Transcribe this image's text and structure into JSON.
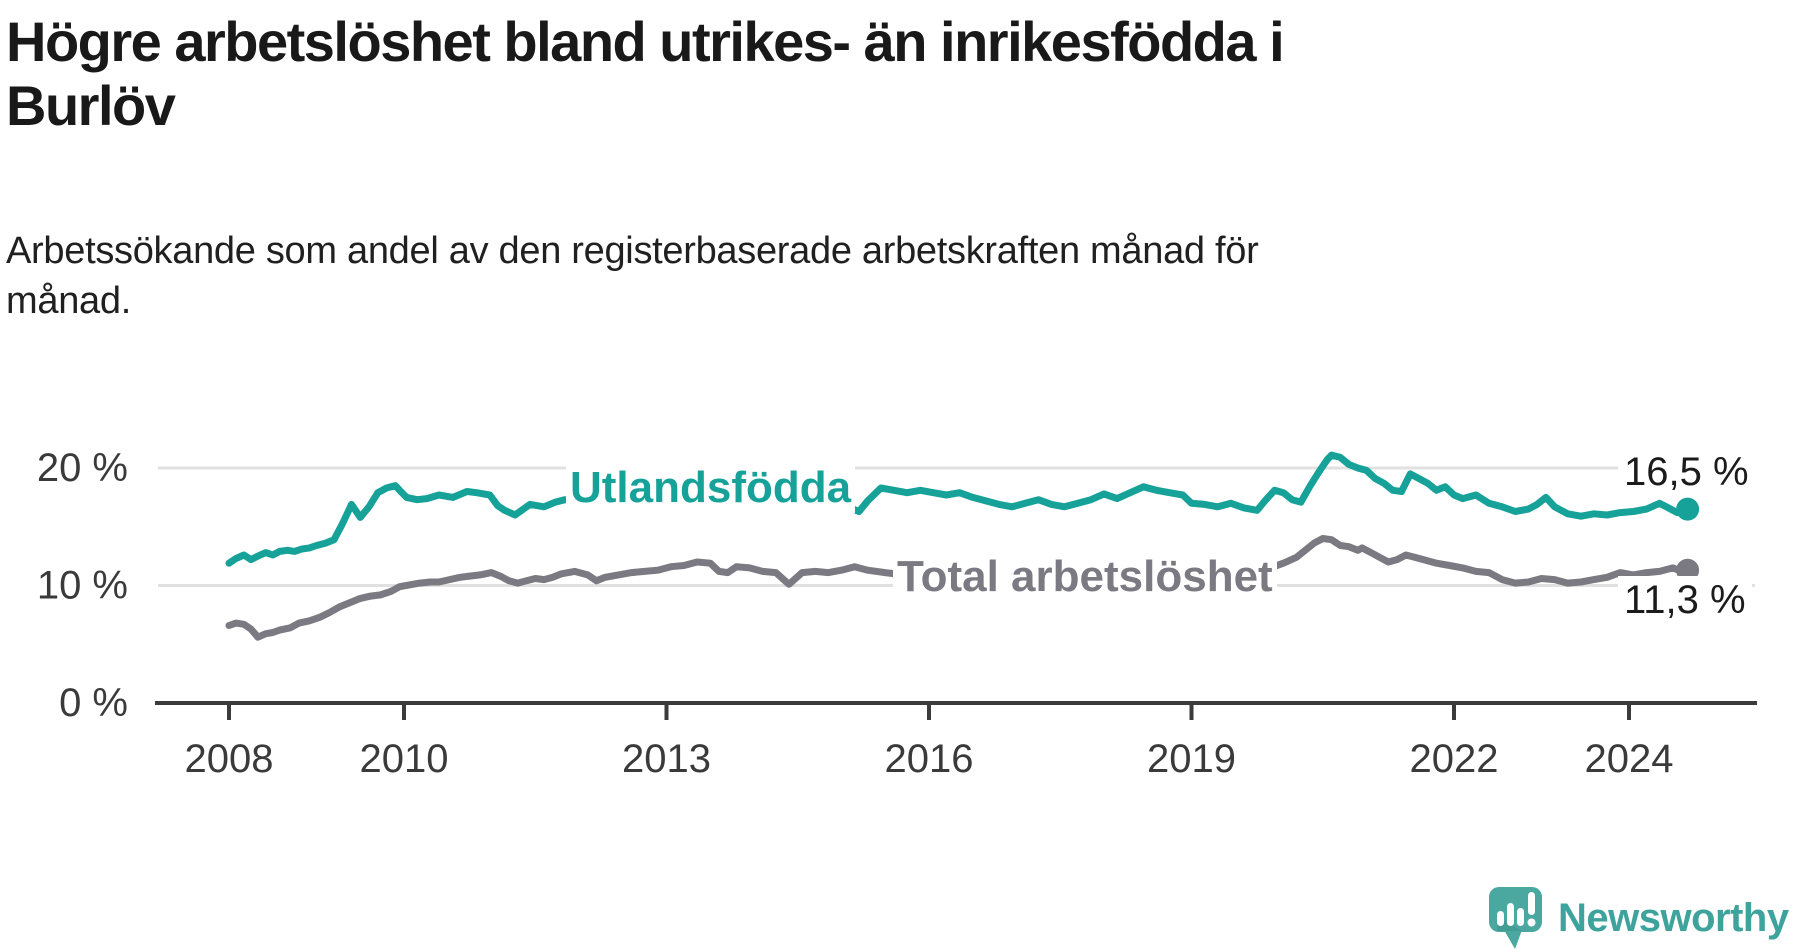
{
  "header": {
    "title_line1": "Högre arbetslöshet bland utrikes- än inrikesfödda i",
    "title_line2": "Burlöv",
    "subtitle_line1": "Arbetssökande som andel av den registerbaserade arbetskraften månad för",
    "subtitle_line2": "månad."
  },
  "branding": {
    "logo_text": "Newsworthy",
    "logo_text_color": "#3ea39c",
    "logo_icon_color": "#4ba8a1",
    "logo_icon_shadow_color": "#3c948d"
  },
  "colors": {
    "background": "#ffffff",
    "text": "#191919",
    "axis": "#3b3b3b",
    "tick_label": "#3a3a3a",
    "gridline": "#e1e1e1",
    "series_foreign_born": "#16a299",
    "series_total": "#7b7981"
  },
  "chart_data": {
    "type": "line",
    "title": "Högre arbetslöshet bland utrikes- än inrikesfödda i Burlöv",
    "subtitle": "Arbetssökande som andel av den registerbaserade arbetskraften månad för månad.",
    "grid": "horizontal",
    "legend_position": "inline-labels",
    "xlim": [
      2007.2,
      2025.4
    ],
    "ylim": [
      0,
      22.5
    ],
    "x_ticks": [
      {
        "year": 2008,
        "label": "2008"
      },
      {
        "year": 2010,
        "label": "2010"
      },
      {
        "year": 2013,
        "label": "2013"
      },
      {
        "year": 2016,
        "label": "2016"
      },
      {
        "year": 2019,
        "label": "2019"
      },
      {
        "year": 2022,
        "label": "2022"
      },
      {
        "year": 2024,
        "label": "2024"
      }
    ],
    "y_ticks": [
      {
        "value": 0,
        "label": "0 %"
      },
      {
        "value": 10,
        "label": "10 %"
      },
      {
        "value": 20,
        "label": "20 %"
      }
    ],
    "series": [
      {
        "name": "Utlandsfödda",
        "color": "#16a299",
        "end_label": "16,5 %",
        "end_value": 16.5,
        "points": [
          [
            2008.0,
            11.9
          ],
          [
            2008.08,
            12.3
          ],
          [
            2008.17,
            12.6
          ],
          [
            2008.25,
            12.2
          ],
          [
            2008.33,
            12.5
          ],
          [
            2008.42,
            12.8
          ],
          [
            2008.5,
            12.6
          ],
          [
            2008.58,
            12.9
          ],
          [
            2008.67,
            13.0
          ],
          [
            2008.75,
            12.9
          ],
          [
            2008.83,
            13.1
          ],
          [
            2008.92,
            13.2
          ],
          [
            2009.0,
            13.4
          ],
          [
            2009.1,
            13.6
          ],
          [
            2009.2,
            13.9
          ],
          [
            2009.3,
            15.3
          ],
          [
            2009.4,
            16.9
          ],
          [
            2009.5,
            15.8
          ],
          [
            2009.6,
            16.7
          ],
          [
            2009.7,
            17.9
          ],
          [
            2009.8,
            18.3
          ],
          [
            2009.9,
            18.5
          ],
          [
            2009.95,
            18.1
          ],
          [
            2010.03,
            17.5
          ],
          [
            2010.15,
            17.3
          ],
          [
            2010.26,
            17.4
          ],
          [
            2010.4,
            17.7
          ],
          [
            2010.56,
            17.5
          ],
          [
            2010.72,
            18.0
          ],
          [
            2010.83,
            17.9
          ],
          [
            2010.98,
            17.7
          ],
          [
            2011.07,
            16.8
          ],
          [
            2011.15,
            16.4
          ],
          [
            2011.27,
            16.0
          ],
          [
            2011.44,
            16.9
          ],
          [
            2011.6,
            16.7
          ],
          [
            2011.73,
            17.1
          ],
          [
            2011.84,
            17.3
          ],
          [
            2011.95,
            17.2
          ],
          [
            2012.1,
            17.4
          ],
          [
            2012.25,
            17.3
          ],
          [
            2012.4,
            17.5
          ],
          [
            2012.55,
            17.7
          ],
          [
            2012.7,
            17.4
          ],
          [
            2012.85,
            17.7
          ],
          [
            2013.0,
            18.0
          ],
          [
            2013.15,
            18.3
          ],
          [
            2013.3,
            18.5
          ],
          [
            2013.45,
            18.2
          ],
          [
            2013.6,
            17.9
          ],
          [
            2013.75,
            18.0
          ],
          [
            2013.9,
            17.9
          ],
          [
            2014.05,
            17.7
          ],
          [
            2014.2,
            17.5
          ],
          [
            2014.35,
            17.4
          ],
          [
            2014.5,
            17.7
          ],
          [
            2014.65,
            17.4
          ],
          [
            2014.8,
            17.1
          ],
          [
            2014.95,
            16.8
          ],
          [
            2015.1,
            16.6
          ],
          [
            2015.2,
            16.3
          ],
          [
            2015.3,
            17.2
          ],
          [
            2015.45,
            18.3
          ],
          [
            2015.6,
            18.1
          ],
          [
            2015.75,
            17.9
          ],
          [
            2015.9,
            18.1
          ],
          [
            2016.05,
            17.9
          ],
          [
            2016.2,
            17.7
          ],
          [
            2016.35,
            17.9
          ],
          [
            2016.5,
            17.5
          ],
          [
            2016.65,
            17.2
          ],
          [
            2016.8,
            16.9
          ],
          [
            2016.95,
            16.7
          ],
          [
            2017.1,
            17.0
          ],
          [
            2017.25,
            17.3
          ],
          [
            2017.4,
            16.9
          ],
          [
            2017.55,
            16.7
          ],
          [
            2017.7,
            17.0
          ],
          [
            2017.85,
            17.3
          ],
          [
            2018.0,
            17.8
          ],
          [
            2018.15,
            17.4
          ],
          [
            2018.3,
            17.9
          ],
          [
            2018.45,
            18.4
          ],
          [
            2018.6,
            18.1
          ],
          [
            2018.75,
            17.9
          ],
          [
            2018.9,
            17.7
          ],
          [
            2019.0,
            17.0
          ],
          [
            2019.15,
            16.9
          ],
          [
            2019.3,
            16.7
          ],
          [
            2019.45,
            17.0
          ],
          [
            2019.6,
            16.6
          ],
          [
            2019.75,
            16.4
          ],
          [
            2019.85,
            17.3
          ],
          [
            2019.95,
            18.1
          ],
          [
            2020.05,
            17.9
          ],
          [
            2020.15,
            17.3
          ],
          [
            2020.25,
            17.1
          ],
          [
            2020.35,
            18.4
          ],
          [
            2020.45,
            19.6
          ],
          [
            2020.55,
            20.7
          ],
          [
            2020.6,
            21.1
          ],
          [
            2020.7,
            20.9
          ],
          [
            2020.8,
            20.3
          ],
          [
            2020.9,
            20.0
          ],
          [
            2021.0,
            19.8
          ],
          [
            2021.1,
            19.1
          ],
          [
            2021.2,
            18.7
          ],
          [
            2021.3,
            18.1
          ],
          [
            2021.4,
            18.0
          ],
          [
            2021.5,
            19.5
          ],
          [
            2021.6,
            19.1
          ],
          [
            2021.7,
            18.7
          ],
          [
            2021.8,
            18.1
          ],
          [
            2021.9,
            18.4
          ],
          [
            2022.0,
            17.7
          ],
          [
            2022.1,
            17.4
          ],
          [
            2022.25,
            17.7
          ],
          [
            2022.4,
            17.0
          ],
          [
            2022.55,
            16.7
          ],
          [
            2022.7,
            16.3
          ],
          [
            2022.85,
            16.5
          ],
          [
            2022.95,
            16.9
          ],
          [
            2023.05,
            17.5
          ],
          [
            2023.15,
            16.7
          ],
          [
            2023.3,
            16.1
          ],
          [
            2023.45,
            15.9
          ],
          [
            2023.6,
            16.1
          ],
          [
            2023.75,
            16.0
          ],
          [
            2023.9,
            16.2
          ],
          [
            2024.05,
            16.3
          ],
          [
            2024.2,
            16.5
          ],
          [
            2024.35,
            17.0
          ],
          [
            2024.45,
            16.6
          ],
          [
            2024.55,
            16.2
          ],
          [
            2024.67,
            16.5
          ]
        ]
      },
      {
        "name": "Total arbetslöshet",
        "color": "#7b7981",
        "end_label": "11,3 %",
        "end_value": 11.3,
        "points": [
          [
            2008.0,
            6.6
          ],
          [
            2008.08,
            6.8
          ],
          [
            2008.17,
            6.7
          ],
          [
            2008.25,
            6.3
          ],
          [
            2008.33,
            5.6
          ],
          [
            2008.42,
            5.9
          ],
          [
            2008.5,
            6.0
          ],
          [
            2008.58,
            6.2
          ],
          [
            2008.7,
            6.4
          ],
          [
            2008.8,
            6.8
          ],
          [
            2008.92,
            7.0
          ],
          [
            2009.04,
            7.3
          ],
          [
            2009.15,
            7.7
          ],
          [
            2009.27,
            8.2
          ],
          [
            2009.4,
            8.6
          ],
          [
            2009.5,
            8.9
          ],
          [
            2009.62,
            9.1
          ],
          [
            2009.73,
            9.2
          ],
          [
            2009.85,
            9.5
          ],
          [
            2009.95,
            9.9
          ],
          [
            2010.1,
            10.1
          ],
          [
            2010.18,
            10.2
          ],
          [
            2010.3,
            10.3
          ],
          [
            2010.4,
            10.3
          ],
          [
            2010.52,
            10.5
          ],
          [
            2010.64,
            10.7
          ],
          [
            2010.75,
            10.8
          ],
          [
            2010.87,
            10.9
          ],
          [
            2011.0,
            11.1
          ],
          [
            2011.1,
            10.8
          ],
          [
            2011.2,
            10.4
          ],
          [
            2011.3,
            10.2
          ],
          [
            2011.4,
            10.4
          ],
          [
            2011.5,
            10.6
          ],
          [
            2011.6,
            10.5
          ],
          [
            2011.7,
            10.7
          ],
          [
            2011.8,
            11.0
          ],
          [
            2011.95,
            11.2
          ],
          [
            2012.1,
            10.9
          ],
          [
            2012.2,
            10.4
          ],
          [
            2012.3,
            10.7
          ],
          [
            2012.45,
            10.9
          ],
          [
            2012.6,
            11.1
          ],
          [
            2012.75,
            11.2
          ],
          [
            2012.9,
            11.3
          ],
          [
            2013.05,
            11.6
          ],
          [
            2013.2,
            11.7
          ],
          [
            2013.35,
            12.0
          ],
          [
            2013.5,
            11.9
          ],
          [
            2013.6,
            11.2
          ],
          [
            2013.7,
            11.1
          ],
          [
            2013.8,
            11.6
          ],
          [
            2013.95,
            11.5
          ],
          [
            2014.1,
            11.2
          ],
          [
            2014.25,
            11.1
          ],
          [
            2014.4,
            10.1
          ],
          [
            2014.55,
            11.1
          ],
          [
            2014.7,
            11.2
          ],
          [
            2014.85,
            11.1
          ],
          [
            2015.0,
            11.3
          ],
          [
            2015.15,
            11.6
          ],
          [
            2015.3,
            11.3
          ],
          [
            2015.5,
            11.1
          ],
          [
            2015.7,
            10.9
          ],
          [
            2015.9,
            11.0
          ],
          [
            2016.1,
            10.8
          ],
          [
            2016.3,
            10.6
          ],
          [
            2016.5,
            10.5
          ],
          [
            2016.7,
            10.3
          ],
          [
            2016.9,
            10.4
          ],
          [
            2017.1,
            10.2
          ],
          [
            2017.3,
            10.4
          ],
          [
            2017.5,
            10.3
          ],
          [
            2017.7,
            10.5
          ],
          [
            2017.9,
            10.4
          ],
          [
            2018.1,
            10.6
          ],
          [
            2018.3,
            10.5
          ],
          [
            2018.5,
            10.7
          ],
          [
            2018.7,
            10.6
          ],
          [
            2018.9,
            10.8
          ],
          [
            2019.1,
            10.9
          ],
          [
            2019.3,
            11.1
          ],
          [
            2019.5,
            11.0
          ],
          [
            2019.7,
            11.2
          ],
          [
            2019.9,
            11.5
          ],
          [
            2020.05,
            11.9
          ],
          [
            2020.2,
            12.4
          ],
          [
            2020.3,
            13.0
          ],
          [
            2020.4,
            13.6
          ],
          [
            2020.5,
            14.0
          ],
          [
            2020.6,
            13.9
          ],
          [
            2020.7,
            13.4
          ],
          [
            2020.8,
            13.3
          ],
          [
            2020.9,
            13.0
          ],
          [
            2020.95,
            13.2
          ],
          [
            2021.05,
            12.8
          ],
          [
            2021.15,
            12.4
          ],
          [
            2021.25,
            12.0
          ],
          [
            2021.35,
            12.2
          ],
          [
            2021.45,
            12.6
          ],
          [
            2021.55,
            12.4
          ],
          [
            2021.65,
            12.2
          ],
          [
            2021.8,
            11.9
          ],
          [
            2021.95,
            11.7
          ],
          [
            2022.1,
            11.5
          ],
          [
            2022.25,
            11.2
          ],
          [
            2022.4,
            11.1
          ],
          [
            2022.55,
            10.5
          ],
          [
            2022.7,
            10.2
          ],
          [
            2022.85,
            10.3
          ],
          [
            2023.0,
            10.6
          ],
          [
            2023.15,
            10.5
          ],
          [
            2023.3,
            10.2
          ],
          [
            2023.45,
            10.3
          ],
          [
            2023.6,
            10.5
          ],
          [
            2023.75,
            10.7
          ],
          [
            2023.9,
            11.1
          ],
          [
            2024.05,
            10.9
          ],
          [
            2024.2,
            11.1
          ],
          [
            2024.35,
            11.2
          ],
          [
            2024.5,
            11.5
          ],
          [
            2024.6,
            11.2
          ],
          [
            2024.67,
            11.3
          ]
        ]
      }
    ]
  }
}
